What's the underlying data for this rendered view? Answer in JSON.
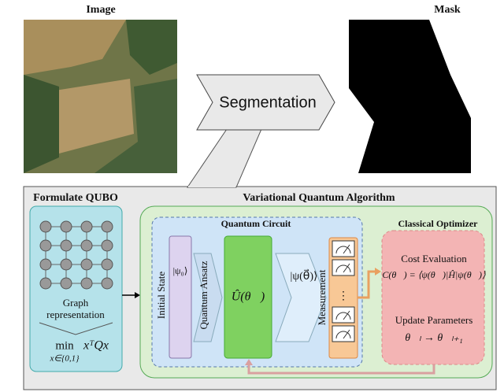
{
  "header": {
    "image": "Image",
    "mask": "Mask",
    "segmentation": "Segmentation"
  },
  "qubo": {
    "title": "Formulate QUBO",
    "graph_label": [
      "Graph",
      "representation"
    ],
    "min": "min",
    "domain": "x∈{0,1}",
    "objective": "xᵀQx"
  },
  "vqa": {
    "title": "Variational Quantum Algorithm",
    "circuit": {
      "title": "Quantum Circuit",
      "initial_state": "Initial State",
      "psi0": "|ψ₀⟩",
      "ansatz": "Quantum Ansatz",
      "unitary": "Û(θ⃗)",
      "psi_theta": "|ψ(θ⃗)⟩",
      "measurement": "Measurement",
      "dots": "⋮"
    },
    "optimizer": {
      "title": "Classical Optimizer",
      "cost": "Cost Evaluation",
      "cost_formula": "C(θ⃗) = ⟨ψ(θ⃗)|Ĥ|ψ(θ⃗)⟩",
      "update": "Update Parameters",
      "update_formula": "θ⃗ₗ → θ⃗ₗ₊₁"
    }
  }
}
